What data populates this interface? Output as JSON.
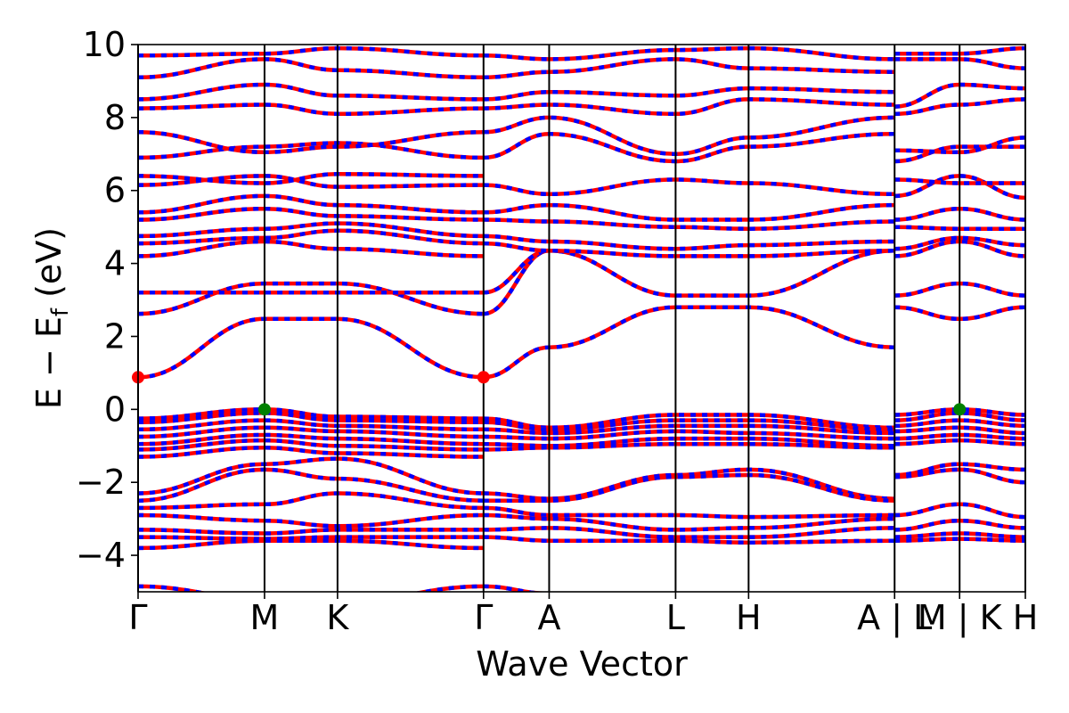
{
  "chart_data": {
    "type": "line",
    "title": "",
    "xlabel": "Wave Vector",
    "ylabel_main": "E − E",
    "ylabel_sub": "f",
    "ylabel_unit": " (eV)",
    "ylim": [
      -5,
      10
    ],
    "y_ticks": [
      10,
      8,
      6,
      4,
      2,
      0,
      -2,
      -4
    ],
    "y_tick_labels": [
      "10",
      "8",
      "6",
      "4",
      "2",
      "0",
      "−2",
      "−4"
    ],
    "k_points": [
      {
        "label": "Γ",
        "x": 0.0
      },
      {
        "label": "M",
        "x": 0.1235
      },
      {
        "label": "K",
        "x": 0.1948
      },
      {
        "label": "Γ",
        "x": 0.3374
      },
      {
        "label": "A",
        "x": 0.4015
      },
      {
        "label": "L",
        "x": 0.525
      },
      {
        "label": "H",
        "x": 0.5963
      },
      {
        "label": "A | L",
        "x": 0.7389
      },
      {
        "label": "M | K",
        "x": 0.8024
      },
      {
        "label": "H",
        "x": 0.8666
      }
    ],
    "xlim": [
      0.0,
      0.8666
    ],
    "colors": {
      "red": "#ff0000",
      "blue": "#0000ff",
      "green": "#008000",
      "axis": "#000000"
    },
    "series": [
      {
        "x": [
          0.0,
          0.1235,
          0.1948,
          0.3374
        ],
        "values": [
          0.88,
          2.48,
          2.48,
          0.88
        ]
      },
      {
        "x": [
          0.0,
          0.1235,
          0.1948,
          0.3374
        ],
        "values": [
          2.62,
          3.45,
          3.45,
          2.62
        ]
      },
      {
        "x": [
          0.0,
          0.1235,
          0.1948,
          0.3374
        ],
        "values": [
          3.2,
          3.2,
          3.2,
          3.2
        ]
      },
      {
        "x": [
          0.3374,
          0.4015,
          0.525,
          0.5963,
          0.7389
        ],
        "values": [
          0.88,
          1.7,
          2.8,
          2.8,
          1.7
        ]
      },
      {
        "x": [
          0.3374,
          0.4015,
          0.525,
          0.5963,
          0.7389
        ],
        "values": [
          2.62,
          4.35,
          3.12,
          3.12,
          4.35
        ]
      },
      {
        "x": [
          0.3374,
          0.4015
        ],
        "values": [
          3.2,
          4.35
        ]
      },
      {
        "x": [
          0.7389,
          0.8024,
          0.8666
        ],
        "values": [
          2.8,
          2.48,
          2.8
        ]
      },
      {
        "x": [
          0.7389,
          0.8024,
          0.8666
        ],
        "values": [
          3.12,
          3.45,
          3.12
        ]
      },
      {
        "x": [
          0.0,
          0.1235,
          0.1948,
          0.3374
        ],
        "values": [
          4.2,
          4.6,
          4.4,
          4.2
        ]
      },
      {
        "x": [
          0.0,
          0.1235,
          0.1948,
          0.3374
        ],
        "values": [
          4.55,
          4.7,
          4.9,
          4.55
        ]
      },
      {
        "x": [
          0.0,
          0.1235,
          0.1948,
          0.3374
        ],
        "values": [
          4.75,
          4.95,
          5.1,
          4.75
        ]
      },
      {
        "x": [
          0.0,
          0.1235,
          0.1948,
          0.3374
        ],
        "values": [
          5.2,
          5.5,
          5.3,
          5.2
        ]
      },
      {
        "x": [
          0.0,
          0.1235,
          0.1948,
          0.3374
        ],
        "values": [
          5.4,
          5.85,
          5.6,
          5.4
        ]
      },
      {
        "x": [
          0.0,
          0.1235,
          0.1948,
          0.3374
        ],
        "values": [
          6.15,
          6.4,
          6.1,
          6.15
        ]
      },
      {
        "x": [
          0.0,
          0.1235,
          0.1948,
          0.3374
        ],
        "values": [
          6.4,
          6.2,
          6.45,
          6.4
        ]
      },
      {
        "x": [
          0.0,
          0.1235,
          0.1948,
          0.3374
        ],
        "values": [
          6.9,
          7.2,
          7.3,
          6.9
        ]
      },
      {
        "x": [
          0.0,
          0.1235,
          0.1948,
          0.3374
        ],
        "values": [
          7.6,
          7.05,
          7.2,
          7.6
        ]
      },
      {
        "x": [
          0.0,
          0.1235,
          0.1948,
          0.3374
        ],
        "values": [
          8.25,
          8.35,
          8.1,
          8.25
        ]
      },
      {
        "x": [
          0.0,
          0.1235,
          0.1948,
          0.3374
        ],
        "values": [
          8.5,
          8.9,
          8.6,
          8.5
        ]
      },
      {
        "x": [
          0.0,
          0.1235,
          0.1948,
          0.3374
        ],
        "values": [
          9.1,
          9.6,
          9.3,
          9.1
        ]
      },
      {
        "x": [
          0.0,
          0.1235,
          0.1948,
          0.3374
        ],
        "values": [
          9.7,
          9.75,
          9.9,
          9.7
        ]
      },
      {
        "x": [
          0.3374,
          0.4015,
          0.525,
          0.5963,
          0.7389
        ],
        "values": [
          4.55,
          4.35,
          4.2,
          4.2,
          4.35
        ]
      },
      {
        "x": [
          0.3374,
          0.4015,
          0.525,
          0.5963,
          0.7389
        ],
        "values": [
          4.75,
          4.6,
          4.4,
          4.5,
          4.6
        ]
      },
      {
        "x": [
          0.3374,
          0.4015,
          0.525,
          0.5963,
          0.7389
        ],
        "values": [
          5.2,
          5.15,
          5.0,
          4.95,
          5.15
        ]
      },
      {
        "x": [
          0.3374,
          0.4015,
          0.525,
          0.5963,
          0.7389
        ],
        "values": [
          5.4,
          5.6,
          5.2,
          5.2,
          5.6
        ]
      },
      {
        "x": [
          0.3374,
          0.4015,
          0.525,
          0.5963,
          0.7389
        ],
        "values": [
          6.15,
          5.9,
          6.3,
          6.2,
          5.9
        ]
      },
      {
        "x": [
          0.3374,
          0.4015,
          0.525,
          0.5963,
          0.7389
        ],
        "values": [
          6.9,
          7.55,
          6.8,
          7.2,
          7.55
        ]
      },
      {
        "x": [
          0.3374,
          0.4015,
          0.525,
          0.5963,
          0.7389
        ],
        "values": [
          7.6,
          8.0,
          7.0,
          7.45,
          8.0
        ]
      },
      {
        "x": [
          0.3374,
          0.4015,
          0.525,
          0.5963,
          0.7389
        ],
        "values": [
          8.25,
          8.35,
          8.1,
          8.5,
          8.35
        ]
      },
      {
        "x": [
          0.3374,
          0.4015,
          0.525,
          0.5963,
          0.7389
        ],
        "values": [
          8.5,
          8.7,
          8.6,
          8.8,
          8.7
        ]
      },
      {
        "x": [
          0.3374,
          0.4015,
          0.525,
          0.5963,
          0.7389
        ],
        "values": [
          9.1,
          9.25,
          9.6,
          9.35,
          9.25
        ]
      },
      {
        "x": [
          0.3374,
          0.4015,
          0.525,
          0.5963,
          0.7389
        ],
        "values": [
          9.7,
          9.6,
          9.85,
          9.9,
          9.6
        ]
      },
      {
        "x": [
          0.7389,
          0.8024,
          0.8666
        ],
        "values": [
          4.2,
          4.6,
          4.2
        ]
      },
      {
        "x": [
          0.7389,
          0.8024,
          0.8666
        ],
        "values": [
          4.4,
          4.7,
          4.5
        ]
      },
      {
        "x": [
          0.7389,
          0.8024,
          0.8666
        ],
        "values": [
          5.0,
          4.95,
          4.95
        ]
      },
      {
        "x": [
          0.7389,
          0.8024,
          0.8666
        ],
        "values": [
          5.2,
          5.5,
          5.2
        ]
      },
      {
        "x": [
          0.7389,
          0.8024,
          0.8666
        ],
        "values": [
          5.85,
          6.4,
          5.8
        ]
      },
      {
        "x": [
          0.7389,
          0.8024,
          0.8666
        ],
        "values": [
          6.3,
          6.2,
          6.2
        ]
      },
      {
        "x": [
          0.7389,
          0.8024,
          0.8666
        ],
        "values": [
          6.8,
          7.2,
          7.2
        ]
      },
      {
        "x": [
          0.7389,
          0.8024,
          0.8666
        ],
        "values": [
          7.1,
          7.05,
          7.45
        ]
      },
      {
        "x": [
          0.7389,
          0.8024,
          0.8666
        ],
        "values": [
          8.1,
          8.35,
          8.5
        ]
      },
      {
        "x": [
          0.7389,
          0.8024,
          0.8666
        ],
        "values": [
          8.3,
          8.9,
          8.8
        ]
      },
      {
        "x": [
          0.7389,
          0.8024,
          0.8666
        ],
        "values": [
          9.6,
          9.6,
          9.35
        ]
      },
      {
        "x": [
          0.7389,
          0.8024,
          0.8666
        ],
        "values": [
          9.75,
          9.75,
          9.9
        ]
      },
      {
        "x": [
          0.0,
          0.1235,
          0.1948,
          0.3374
        ],
        "values": [
          -0.25,
          0.0,
          -0.2,
          -0.25
        ]
      },
      {
        "x": [
          0.0,
          0.1235,
          0.1948,
          0.3374
        ],
        "values": [
          -0.35,
          -0.1,
          -0.3,
          -0.35
        ]
      },
      {
        "x": [
          0.0,
          0.1235,
          0.1948,
          0.3374
        ],
        "values": [
          -0.55,
          -0.3,
          -0.45,
          -0.55
        ]
      },
      {
        "x": [
          0.0,
          0.1235,
          0.1948,
          0.3374
        ],
        "values": [
          -0.75,
          -0.5,
          -0.6,
          -0.75
        ]
      },
      {
        "x": [
          0.0,
          0.1235,
          0.1948,
          0.3374
        ],
        "values": [
          -0.95,
          -0.7,
          -0.8,
          -0.95
        ]
      },
      {
        "x": [
          0.0,
          0.1235,
          0.1948,
          0.3374
        ],
        "values": [
          -1.1,
          -0.85,
          -1.0,
          -1.1
        ]
      },
      {
        "x": [
          0.0,
          0.1235,
          0.1948,
          0.3374
        ],
        "values": [
          -1.3,
          -1.05,
          -1.2,
          -1.3
        ]
      },
      {
        "x": [
          0.3374,
          0.4015,
          0.525,
          0.5963,
          0.7389
        ],
        "values": [
          -0.25,
          -0.5,
          -0.15,
          -0.15,
          -0.5
        ]
      },
      {
        "x": [
          0.3374,
          0.4015,
          0.525,
          0.5963,
          0.7389
        ],
        "values": [
          -0.35,
          -0.55,
          -0.3,
          -0.3,
          -0.55
        ]
      },
      {
        "x": [
          0.3374,
          0.4015,
          0.525,
          0.5963,
          0.7389
        ],
        "values": [
          -0.55,
          -0.65,
          -0.45,
          -0.45,
          -0.65
        ]
      },
      {
        "x": [
          0.3374,
          0.4015,
          0.525,
          0.5963,
          0.7389
        ],
        "values": [
          -0.75,
          -0.8,
          -0.6,
          -0.65,
          -0.8
        ]
      },
      {
        "x": [
          0.3374,
          0.4015,
          0.525,
          0.5963,
          0.7389
        ],
        "values": [
          -0.95,
          -1.0,
          -0.8,
          -0.8,
          -1.0
        ]
      },
      {
        "x": [
          0.3374,
          0.4015,
          0.525,
          0.5963,
          0.7389
        ],
        "values": [
          -1.1,
          -1.05,
          -0.95,
          -0.95,
          -1.05
        ]
      },
      {
        "x": [
          0.7389,
          0.8024,
          0.8666
        ],
        "values": [
          -0.15,
          0.0,
          -0.15
        ]
      },
      {
        "x": [
          0.7389,
          0.8024,
          0.8666
        ],
        "values": [
          -0.3,
          -0.1,
          -0.3
        ]
      },
      {
        "x": [
          0.7389,
          0.8024,
          0.8666
        ],
        "values": [
          -0.45,
          -0.3,
          -0.45
        ]
      },
      {
        "x": [
          0.7389,
          0.8024,
          0.8666
        ],
        "values": [
          -0.6,
          -0.5,
          -0.65
        ]
      },
      {
        "x": [
          0.7389,
          0.8024,
          0.8666
        ],
        "values": [
          -0.8,
          -0.7,
          -0.8
        ]
      },
      {
        "x": [
          0.7389,
          0.8024,
          0.8666
        ],
        "values": [
          -0.95,
          -0.85,
          -0.95
        ]
      },
      {
        "x": [
          0.0,
          0.1235,
          0.1948,
          0.3374
        ],
        "values": [
          -2.3,
          -1.5,
          -1.35,
          -2.3
        ]
      },
      {
        "x": [
          0.0,
          0.1235,
          0.1948,
          0.3374
        ],
        "values": [
          -2.5,
          -1.65,
          -1.9,
          -2.5
        ]
      },
      {
        "x": [
          0.0,
          0.1235,
          0.1948,
          0.3374
        ],
        "values": [
          -2.7,
          -2.6,
          -2.3,
          -2.7
        ]
      },
      {
        "x": [
          0.0,
          0.1235,
          0.1948,
          0.3374
        ],
        "values": [
          -2.9,
          -3.05,
          -3.2,
          -2.9
        ]
      },
      {
        "x": [
          0.0,
          0.1235,
          0.1948,
          0.3374
        ],
        "values": [
          -3.3,
          -3.4,
          -3.3,
          -3.3
        ]
      },
      {
        "x": [
          0.0,
          0.1235,
          0.1948,
          0.3374
        ],
        "values": [
          -3.5,
          -3.55,
          -3.5,
          -3.5
        ]
      },
      {
        "x": [
          0.0,
          0.1235,
          0.1948,
          0.3374
        ],
        "values": [
          -3.8,
          -3.6,
          -3.6,
          -3.8
        ]
      },
      {
        "x": [
          0.3374,
          0.4015,
          0.525,
          0.5963,
          0.7389
        ],
        "values": [
          -2.3,
          -2.45,
          -1.8,
          -1.65,
          -2.45
        ]
      },
      {
        "x": [
          0.3374,
          0.4015,
          0.525,
          0.5963,
          0.7389
        ],
        "values": [
          -2.5,
          -2.5,
          -1.85,
          -1.8,
          -2.5
        ]
      },
      {
        "x": [
          0.3374,
          0.4015,
          0.525,
          0.5963,
          0.7389
        ],
        "values": [
          -2.7,
          -2.9,
          -2.9,
          -2.95,
          -2.9
        ]
      },
      {
        "x": [
          0.3374,
          0.4015,
          0.525,
          0.5963,
          0.7389
        ],
        "values": [
          -2.9,
          -3.0,
          -3.3,
          -3.25,
          -3.0
        ]
      },
      {
        "x": [
          0.3374,
          0.4015,
          0.525,
          0.5963,
          0.7389
        ],
        "values": [
          -3.3,
          -3.25,
          -3.5,
          -3.5,
          -3.25
        ]
      },
      {
        "x": [
          0.3374,
          0.4015,
          0.525,
          0.5963,
          0.7389
        ],
        "values": [
          -3.5,
          -3.6,
          -3.6,
          -3.65,
          -3.6
        ]
      },
      {
        "x": [
          0.7389,
          0.8024,
          0.8666
        ],
        "values": [
          -1.8,
          -1.5,
          -1.65
        ]
      },
      {
        "x": [
          0.7389,
          0.8024,
          0.8666
        ],
        "values": [
          -1.85,
          -1.65,
          -2.0
        ]
      },
      {
        "x": [
          0.7389,
          0.8024,
          0.8666
        ],
        "values": [
          -2.9,
          -2.6,
          -2.95
        ]
      },
      {
        "x": [
          0.7389,
          0.8024,
          0.8666
        ],
        "values": [
          -3.3,
          -3.05,
          -3.25
        ]
      },
      {
        "x": [
          0.7389,
          0.8024,
          0.8666
        ],
        "values": [
          -3.5,
          -3.4,
          -3.5
        ]
      },
      {
        "x": [
          0.7389,
          0.8024,
          0.8666
        ],
        "values": [
          -3.6,
          -3.55,
          -3.6
        ]
      },
      {
        "x": [
          0.0,
          0.1235,
          0.1948,
          0.3374,
          0.4015,
          0.525,
          0.5963,
          0.7389
        ],
        "values": [
          -4.85,
          -5.2,
          -5.3,
          -4.85,
          -5.05,
          -5.2,
          -5.2,
          -5.05
        ]
      }
    ],
    "markers": [
      {
        "x": 0.0,
        "y": 0.88,
        "color": "red"
      },
      {
        "x": 0.3374,
        "y": 0.88,
        "color": "red"
      },
      {
        "x": 0.1235,
        "y": 0.0,
        "color": "green"
      },
      {
        "x": 0.8024,
        "y": 0.0,
        "color": "green"
      }
    ]
  }
}
